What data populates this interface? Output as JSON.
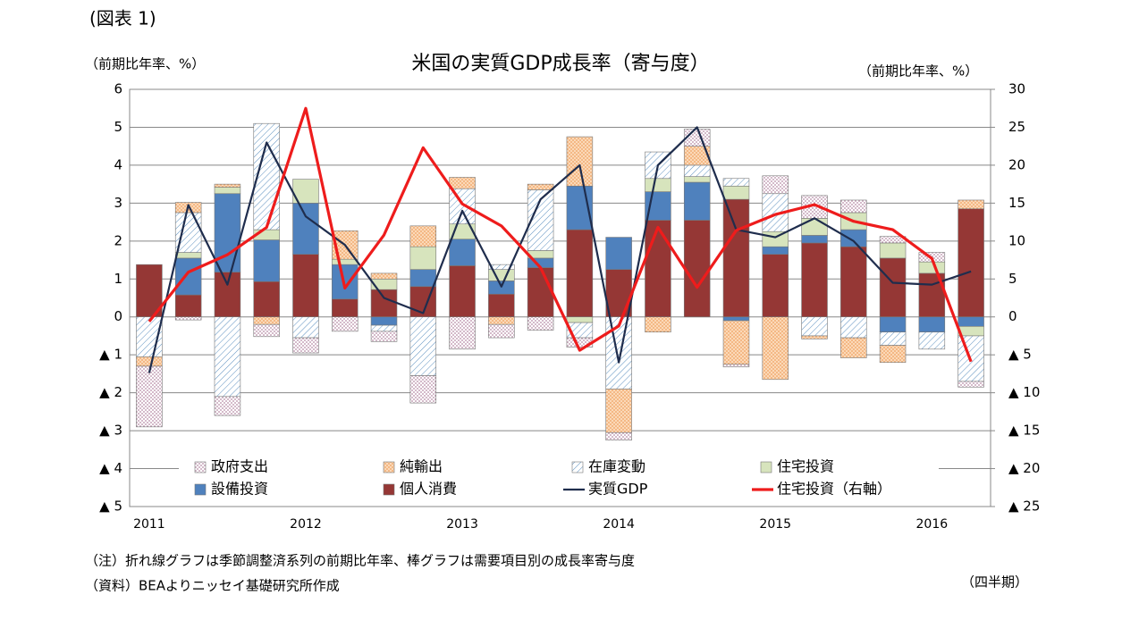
{
  "chart_data": {
    "type": "bar",
    "figure_label": "(図表 1)",
    "title": "米国の実質GDP成長率（寄与度）",
    "y_label": "（前期比年率、%）",
    "y2_label": "（前期比年率、%）",
    "x_label": "（四半期）",
    "notes": [
      "（注）折れ線グラフは季節調整済系列の前期比年率、棒グラフは需要項目別の成長率寄与度",
      "（資料）BEAよりニッセイ基礎研究所作成"
    ],
    "categories": [
      "2011",
      null,
      null,
      null,
      "2012",
      null,
      null,
      null,
      "2013",
      null,
      null,
      null,
      "2014",
      null,
      null,
      null,
      "2015",
      null,
      null,
      null,
      "2016",
      null
    ],
    "ylim": [
      -5,
      6
    ],
    "yticks": [
      6,
      5,
      4,
      3,
      2,
      1,
      0,
      {
        "value": -1,
        "label": "▲ 1"
      },
      {
        "value": -2,
        "label": "▲ 2"
      },
      {
        "value": -3,
        "label": "▲ 3"
      },
      {
        "value": -4,
        "label": "▲ 4"
      },
      {
        "value": -5,
        "label": "▲ 5"
      }
    ],
    "y2lim": [
      -25,
      30
    ],
    "y2ticks": [
      30,
      25,
      20,
      15,
      10,
      5,
      0,
      {
        "value": -5,
        "label": "▲ 5"
      },
      {
        "value": -10,
        "label": "▲ 10"
      },
      {
        "value": -15,
        "label": "▲ 15"
      },
      {
        "value": -20,
        "label": "▲ 20"
      },
      {
        "value": -25,
        "label": "▲ 25"
      }
    ],
    "grid": true,
    "series": [
      {
        "name": "政府支出",
        "type": "bar",
        "color": "#b58aa5",
        "values": [
          -1.6,
          -0.08,
          -0.5,
          -0.32,
          -0.4,
          -0.38,
          -0.27,
          -0.72,
          -0.85,
          -0.35,
          -0.35,
          -0.25,
          -0.2,
          0,
          0.45,
          -0.07,
          0.47,
          0.6,
          0.33,
          0.17,
          0.25,
          -0.15
        ]
      },
      {
        "name": "純輸出",
        "type": "bar",
        "color": "#f0a060",
        "values": [
          -0.25,
          0.27,
          0.08,
          -0.2,
          0,
          0.75,
          0.15,
          0.55,
          0.3,
          -0.2,
          0.15,
          1.3,
          -1.15,
          -0.4,
          0.5,
          -1.15,
          -1.65,
          -0.08,
          -0.53,
          -0.45,
          0,
          0.23
        ]
      },
      {
        "name": "在庫変動",
        "type": "bar",
        "color": "#5b8fbf",
        "values": [
          -1.05,
          1.05,
          -2.1,
          2.8,
          -0.55,
          0,
          -0.16,
          -1.55,
          0.93,
          0.13,
          1.6,
          -0.4,
          -1.9,
          0.7,
          0.3,
          0.2,
          1.0,
          -0.5,
          -0.55,
          -0.35,
          -0.45,
          -1.2
        ]
      },
      {
        "name": "住宅投資",
        "type": "bar",
        "color": "#d7e4bd",
        "values": [
          0,
          0.15,
          0.17,
          0.27,
          0.63,
          0.14,
          0.28,
          0.6,
          0.4,
          0.3,
          0.2,
          -0.15,
          0,
          0.35,
          0.15,
          0.35,
          0.4,
          0.45,
          0.45,
          0.4,
          0.3,
          -0.25
        ]
      },
      {
        "name": "設備投資",
        "type": "bar",
        "color": "#4f81bd",
        "values": [
          0,
          0.97,
          2.07,
          1.1,
          1.35,
          0.91,
          -0.22,
          0.45,
          0.7,
          0.35,
          0.25,
          1.15,
          0.85,
          0.75,
          1.0,
          -0.1,
          0.2,
          0.2,
          0.45,
          -0.4,
          -0.4,
          -0.25
        ]
      },
      {
        "name": "個人消費",
        "type": "bar",
        "color": "#953735",
        "values": [
          1.38,
          0.58,
          1.18,
          0.93,
          1.65,
          0.47,
          0.72,
          0.8,
          1.35,
          0.6,
          1.3,
          2.3,
          1.25,
          2.55,
          2.55,
          3.1,
          1.65,
          1.95,
          1.85,
          1.55,
          1.15,
          2.85
        ]
      },
      {
        "name": "実質GDP",
        "type": "line",
        "color": "#1f2d4d",
        "values": [
          -1.48,
          2.95,
          0.85,
          4.6,
          2.65,
          1.9,
          0.5,
          0.1,
          2.8,
          0.8,
          3.1,
          4.0,
          -1.2,
          4.0,
          5.0,
          2.3,
          2.1,
          2.6,
          2.0,
          0.9,
          0.85,
          1.2
        ]
      },
      {
        "name": "住宅投資（右軸）",
        "type": "line",
        "axis": "y2",
        "color": "#ee1c1c",
        "values": [
          -0.6,
          5.9,
          8.2,
          11.8,
          27.5,
          3.8,
          10.8,
          22.3,
          14.9,
          12,
          6.5,
          -4.4,
          -1.2,
          11.8,
          3.9,
          11.4,
          13.5,
          14.8,
          12.6,
          11.5,
          7.7,
          -5.9
        ]
      }
    ]
  }
}
